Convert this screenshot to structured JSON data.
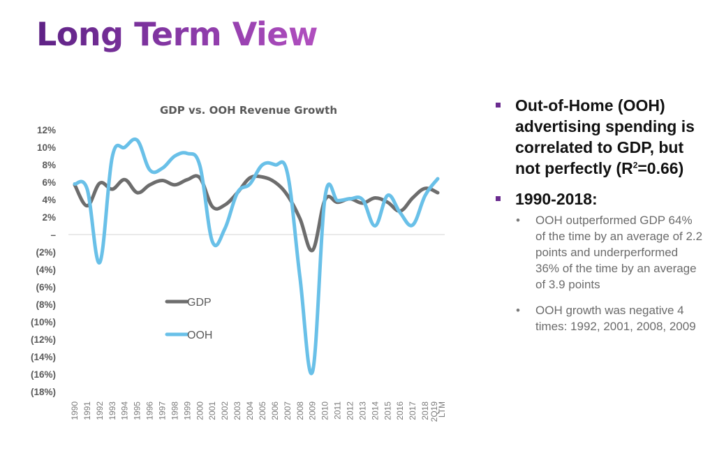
{
  "slide": {
    "title": "Long Term View"
  },
  "chart_data": {
    "type": "line",
    "title": "GDP vs. OOH Revenue Growth",
    "xlabel": "",
    "ylabel": "",
    "ylim": [
      -18,
      12
    ],
    "y_ticks": [
      12,
      10,
      8,
      6,
      4,
      2,
      0,
      -2,
      -4,
      -6,
      -8,
      -10,
      -12,
      -14,
      -16,
      -18
    ],
    "y_tick_labels": [
      "12%",
      "10%",
      "8%",
      "6%",
      "4%",
      "2%",
      "–",
      "(2%)",
      "(4%)",
      "(6%)",
      "(8%)",
      "(10%)",
      "(12%)",
      "(14%)",
      "(16%)",
      "(18%)"
    ],
    "grid": "zero-line only",
    "categories": [
      "1990",
      "1991",
      "1992",
      "1993",
      "1994",
      "1995",
      "1996",
      "1997",
      "1998",
      "1999",
      "2000",
      "2001",
      "2002",
      "2003",
      "2004",
      "2005",
      "2006",
      "2007",
      "2008",
      "2009",
      "2010",
      "2011",
      "2012",
      "2013",
      "2014",
      "2015",
      "2016",
      "2017",
      "2018",
      "2Q19 LTM"
    ],
    "series": [
      {
        "name": "GDP",
        "color": "#6d6d6d",
        "values": [
          5.7,
          3.3,
          5.9,
          5.2,
          6.3,
          4.8,
          5.7,
          6.2,
          5.7,
          6.3,
          6.5,
          3.2,
          3.4,
          4.8,
          6.5,
          6.6,
          6.0,
          4.5,
          1.8,
          -1.8,
          4.0,
          3.7,
          4.1,
          3.6,
          4.2,
          3.7,
          2.7,
          4.2,
          5.3,
          4.8
        ]
      },
      {
        "name": "OOH",
        "color": "#69c0e8",
        "values": [
          5.8,
          5.2,
          -3.2,
          8.9,
          10.0,
          10.8,
          7.4,
          7.6,
          9.0,
          9.3,
          7.9,
          -0.8,
          0.7,
          4.8,
          5.8,
          8.0,
          8.0,
          7.0,
          -5.0,
          -15.7,
          4.3,
          3.9,
          4.1,
          4.0,
          1.0,
          4.5,
          2.5,
          1.1,
          4.5,
          6.4
        ]
      }
    ],
    "legend": {
      "placement": "center-left, inside plot",
      "entries": [
        "GDP",
        "OOH"
      ]
    }
  },
  "bullets": [
    {
      "text_before_sup": "Out-of-Home (OOH) advertising spending is correlated to GDP, but not perfectly (R",
      "sup": "2",
      "text_after_sup": "=0.66)"
    },
    {
      "text": "1990-2018:",
      "sub": [
        "OOH outperformed GDP 64% of the time by an average of 2.2 points and underperformed 36% of the time by an average of 3.9 points",
        "OOH growth was negative 4 times: 1992, 2001, 2008, 2009"
      ]
    }
  ],
  "colors": {
    "title_start": "#5e2285",
    "title_end": "#b14fbf",
    "bullet_square": "#6a2b8f",
    "gdp_line": "#6d6d6d",
    "ooh_line": "#69c0e8"
  }
}
